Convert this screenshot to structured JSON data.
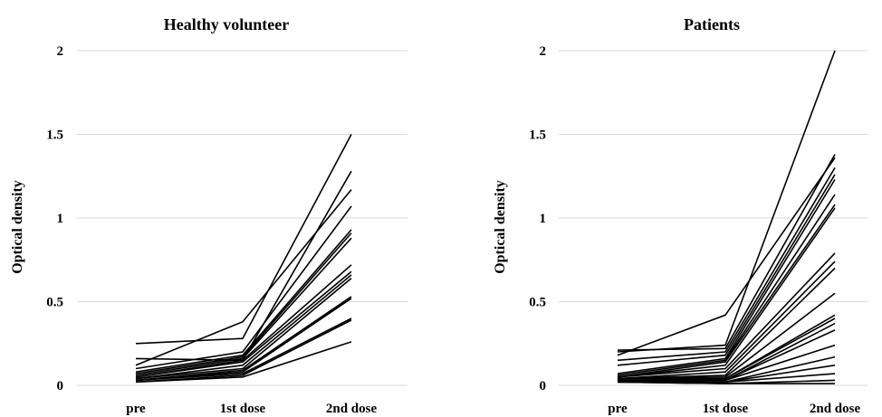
{
  "chart_data": [
    {
      "type": "line",
      "title": "Healthy volunteer",
      "xlabel": "",
      "ylabel": "Optical density",
      "categories": [
        "pre",
        "1st dose",
        "2nd dose"
      ],
      "ylim": [
        0,
        2
      ],
      "yticks": [
        "0",
        "0.5",
        "1",
        "1.5",
        "2"
      ],
      "grid": true,
      "legend": "none",
      "series": [
        {
          "values": [
            0.25,
            0.28,
            1.5
          ]
        },
        {
          "values": [
            0.16,
            0.15,
            1.28
          ]
        },
        {
          "values": [
            0.12,
            0.38,
            1.17
          ]
        },
        {
          "values": [
            0.1,
            0.2,
            1.07
          ]
        },
        {
          "values": [
            0.08,
            0.18,
            0.93
          ]
        },
        {
          "values": [
            0.07,
            0.17,
            0.91
          ]
        },
        {
          "values": [
            0.06,
            0.16,
            0.88
          ]
        },
        {
          "values": [
            0.05,
            0.15,
            0.72
          ]
        },
        {
          "values": [
            0.05,
            0.14,
            0.68
          ]
        },
        {
          "values": [
            0.04,
            0.12,
            0.66
          ]
        },
        {
          "values": [
            0.04,
            0.1,
            0.64
          ]
        },
        {
          "values": [
            0.03,
            0.09,
            0.53
          ]
        },
        {
          "values": [
            0.03,
            0.08,
            0.52
          ]
        },
        {
          "values": [
            0.03,
            0.07,
            0.4
          ]
        },
        {
          "values": [
            0.02,
            0.06,
            0.39
          ]
        },
        {
          "values": [
            0.02,
            0.05,
            0.26
          ]
        }
      ]
    },
    {
      "type": "line",
      "title": "Patients",
      "xlabel": "",
      "ylabel": "Optical density",
      "categories": [
        "pre",
        "1st dose",
        "2nd dose"
      ],
      "ylim": [
        0,
        2
      ],
      "yticks": [
        "0",
        "0.5",
        "1",
        "1.5",
        "2"
      ],
      "grid": true,
      "legend": "none",
      "series": [
        {
          "values": [
            0.2,
            0.24,
            2.0
          ]
        },
        {
          "values": [
            0.21,
            0.22,
            1.38
          ]
        },
        {
          "values": [
            0.18,
            0.42,
            1.36
          ]
        },
        {
          "values": [
            0.15,
            0.2,
            1.3
          ]
        },
        {
          "values": [
            0.12,
            0.18,
            1.26
          ]
        },
        {
          "values": [
            0.07,
            0.16,
            1.23
          ]
        },
        {
          "values": [
            0.06,
            0.15,
            1.14
          ]
        },
        {
          "values": [
            0.05,
            0.14,
            1.08
          ]
        },
        {
          "values": [
            0.05,
            0.12,
            1.06
          ]
        },
        {
          "values": [
            0.05,
            0.1,
            0.79
          ]
        },
        {
          "values": [
            0.04,
            0.08,
            0.74
          ]
        },
        {
          "values": [
            0.04,
            0.06,
            0.7
          ]
        },
        {
          "values": [
            0.04,
            0.05,
            0.55
          ]
        },
        {
          "values": [
            0.04,
            0.04,
            0.42
          ]
        },
        {
          "values": [
            0.03,
            0.04,
            0.4
          ]
        },
        {
          "values": [
            0.03,
            0.03,
            0.37
          ]
        },
        {
          "values": [
            0.03,
            0.03,
            0.33
          ]
        },
        {
          "values": [
            0.03,
            0.03,
            0.24
          ]
        },
        {
          "values": [
            0.03,
            0.02,
            0.17
          ]
        },
        {
          "values": [
            0.02,
            0.02,
            0.12
          ]
        },
        {
          "values": [
            0.02,
            0.02,
            0.07
          ]
        },
        {
          "values": [
            0.02,
            0.01,
            0.03
          ]
        },
        {
          "values": [
            0.02,
            0.01,
            0.01
          ]
        }
      ]
    }
  ]
}
